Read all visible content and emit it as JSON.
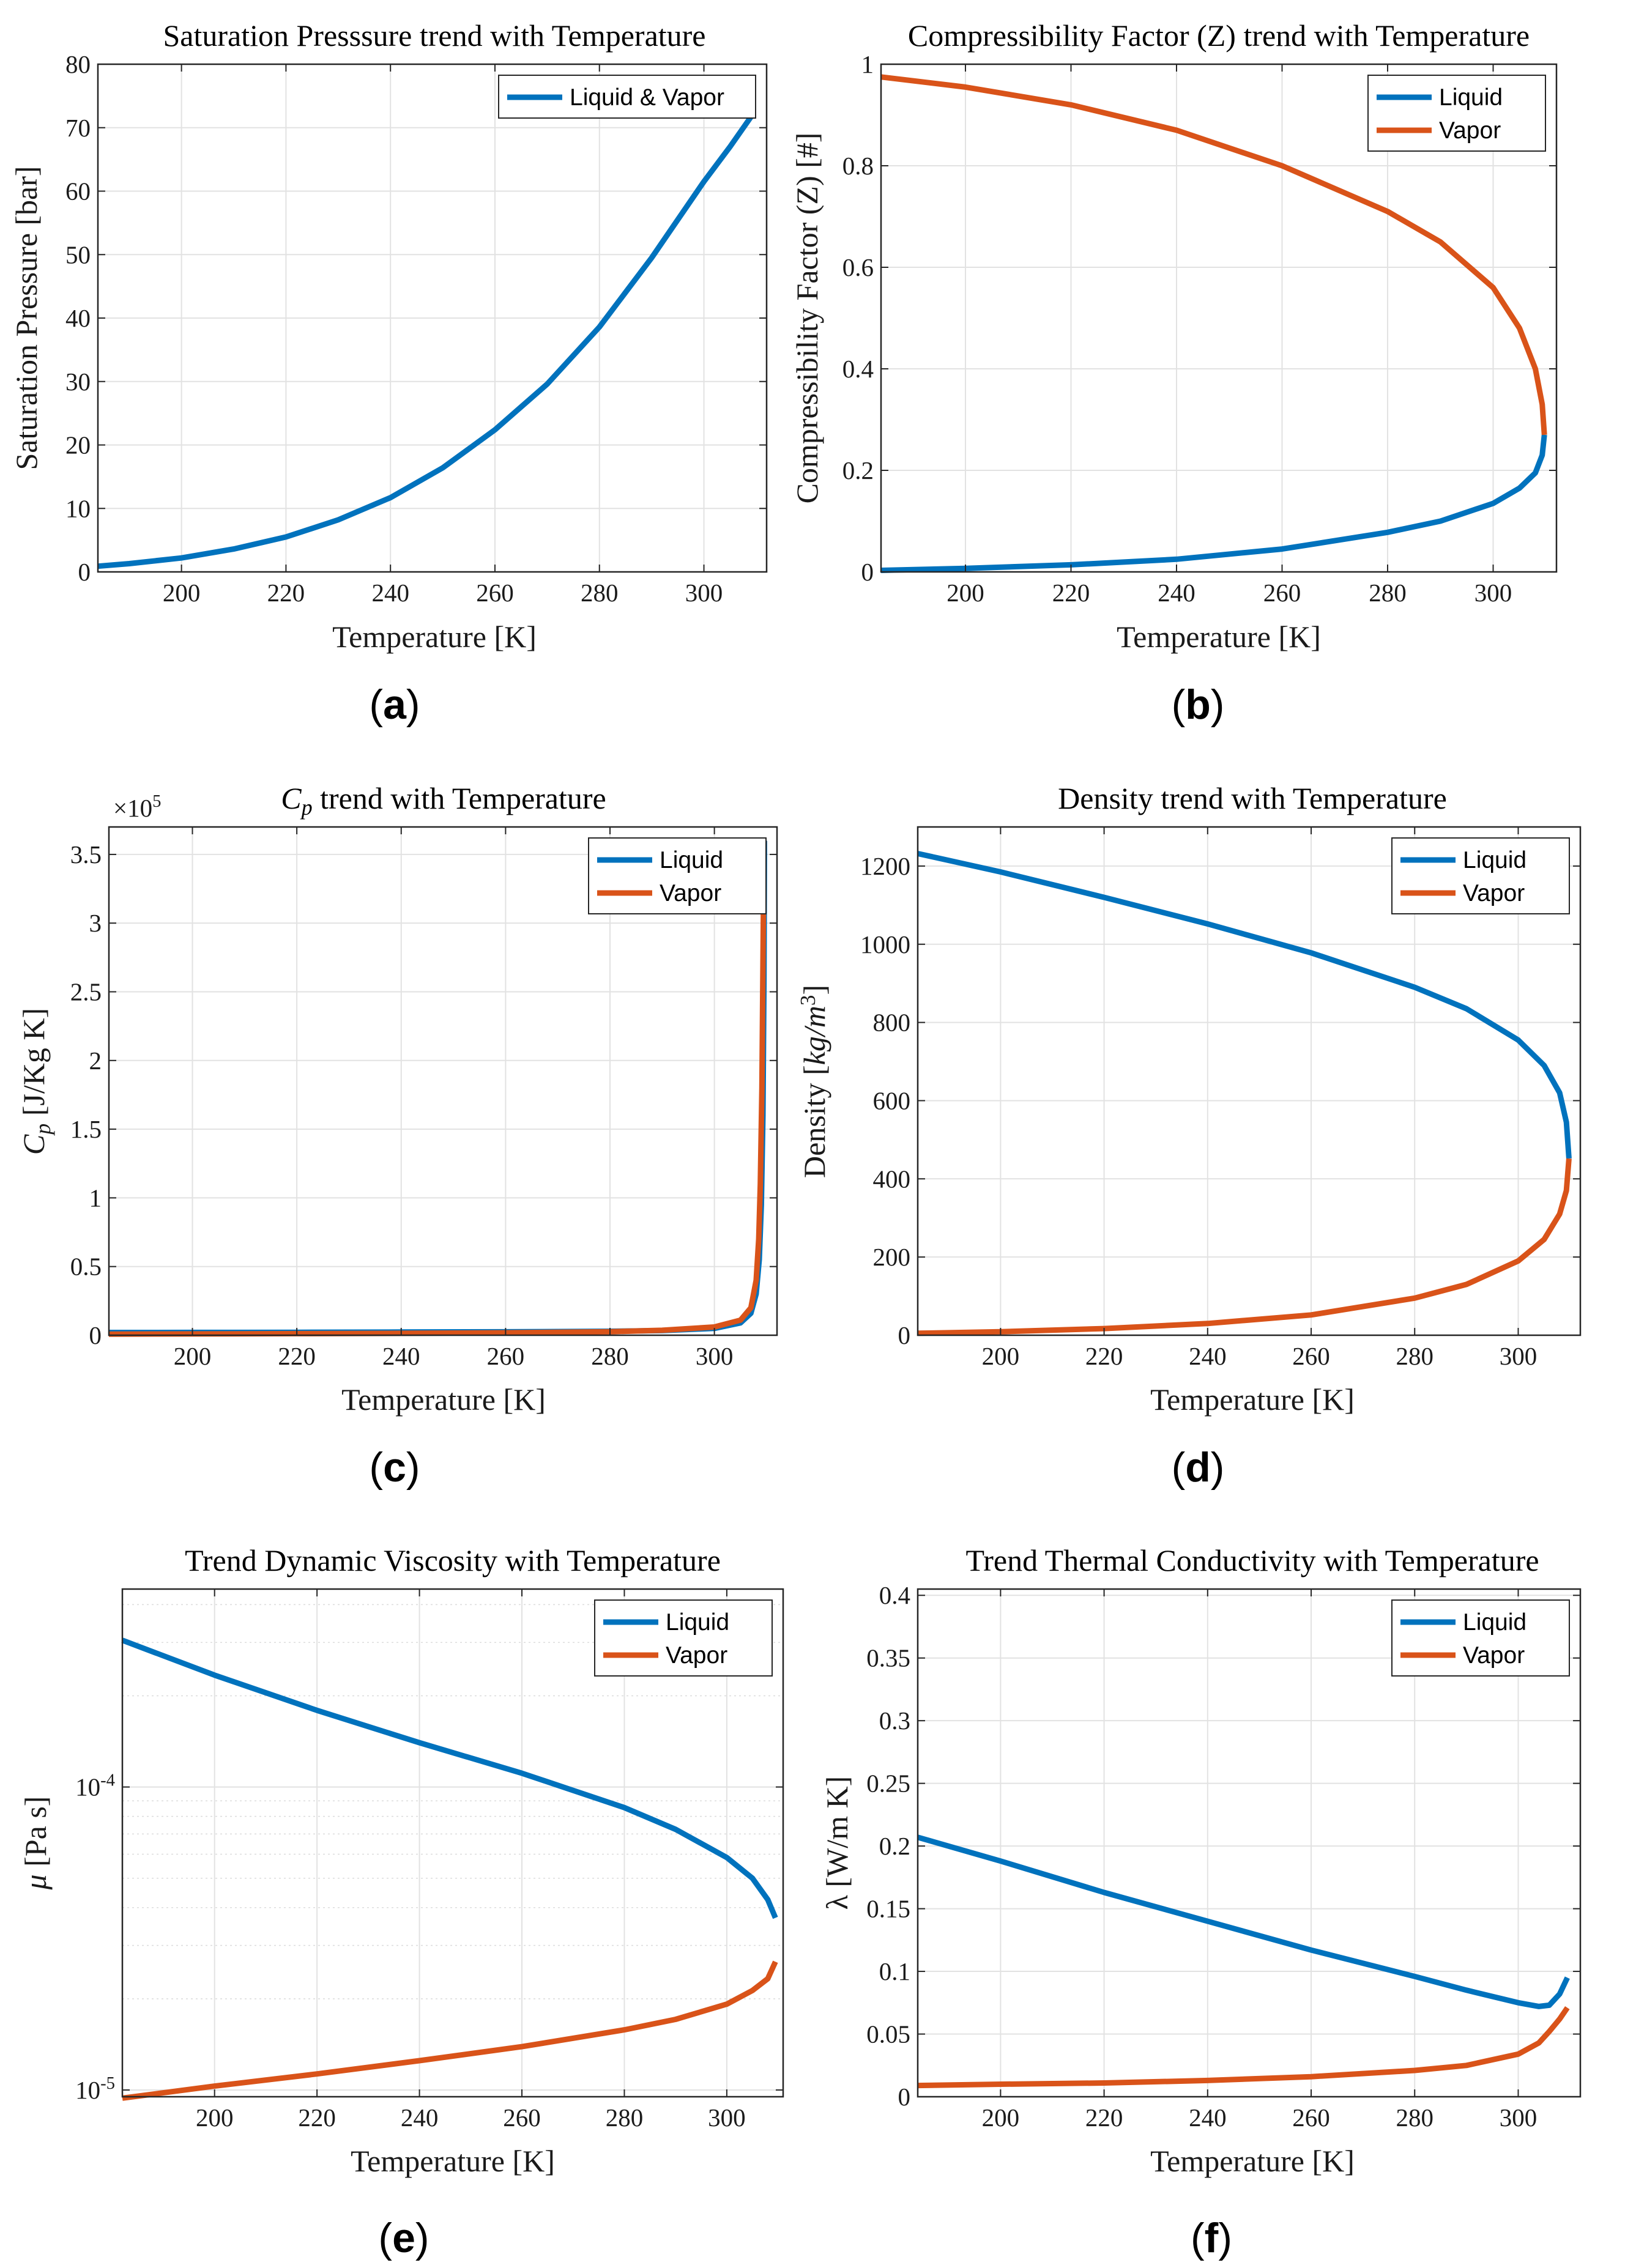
{
  "colors": {
    "liquid": "#0072BD",
    "vapor": "#D95319"
  },
  "chart_data": [
    {
      "type": "line",
      "panel": "a",
      "caption": "(a)",
      "title": "Saturation Presssure trend with Temperature",
      "xlabel": "Temperature [K]",
      "ylabel": "Saturation Pressure [bar]",
      "xlim": [
        184,
        312
      ],
      "ylim": [
        0,
        80
      ],
      "yscale": "linear",
      "grid": true,
      "legend_position": "top-right",
      "xticks": [
        200,
        220,
        240,
        260,
        280,
        300
      ],
      "yticks": [
        0,
        10,
        20,
        30,
        40,
        50,
        60,
        70,
        80
      ],
      "yticklabels": [
        "0",
        "10",
        "20",
        "30",
        "40",
        "50",
        "60",
        "70",
        "80"
      ],
      "series": [
        {
          "name": "Liquid & Vapor",
          "color": "#0072BD",
          "x": [
            184,
            190,
            200,
            210,
            220,
            230,
            240,
            250,
            260,
            270,
            280,
            290,
            300,
            305,
            309.5
          ],
          "y": [
            0.9,
            1.3,
            2.2,
            3.6,
            5.5,
            8.2,
            11.7,
            16.4,
            22.4,
            29.6,
            38.6,
            49.5,
            61.5,
            67.0,
            72.3
          ]
        }
      ]
    },
    {
      "type": "line",
      "panel": "b",
      "caption": "(b)",
      "title": "Compressibility Factor (Z) trend with Temperature",
      "xlabel": "Temperature [K]",
      "ylabel": "Compressibility Factor (Z) [#]",
      "xlim": [
        184,
        312
      ],
      "ylim": [
        0,
        1
      ],
      "yscale": "linear",
      "grid": true,
      "legend_position": "top-right",
      "xticks": [
        200,
        220,
        240,
        260,
        280,
        300
      ],
      "yticks": [
        0,
        0.2,
        0.4,
        0.6,
        0.8,
        1
      ],
      "yticklabels": [
        "0",
        "0.2",
        "0.4",
        "0.6",
        "0.8",
        "1"
      ],
      "series": [
        {
          "name": "Liquid",
          "color": "#0072BD",
          "x": [
            184,
            200,
            220,
            240,
            260,
            280,
            290,
            300,
            305,
            308,
            309.3,
            309.7
          ],
          "y": [
            0.003,
            0.007,
            0.014,
            0.025,
            0.045,
            0.078,
            0.1,
            0.135,
            0.165,
            0.195,
            0.23,
            0.27
          ]
        },
        {
          "name": "Vapor",
          "color": "#D95319",
          "x": [
            184,
            200,
            220,
            240,
            260,
            280,
            290,
            300,
            305,
            308,
            309.3,
            309.7
          ],
          "y": [
            0.975,
            0.955,
            0.92,
            0.87,
            0.8,
            0.71,
            0.65,
            0.56,
            0.48,
            0.4,
            0.33,
            0.27
          ]
        }
      ]
    },
    {
      "type": "line",
      "panel": "c",
      "caption": "(c)",
      "title": "Cp trend with Temperature",
      "xlabel": "Temperature [K]",
      "ylabel": "Cp [J/Kg K]",
      "exponent_label": "×10^5",
      "xlim": [
        184,
        312
      ],
      "ylim": [
        0,
        370000
      ],
      "yscale": "linear",
      "grid": true,
      "legend_position": "top-right",
      "xticks": [
        200,
        220,
        240,
        260,
        280,
        300
      ],
      "yticks": [
        0,
        50000,
        100000,
        150000,
        200000,
        250000,
        300000,
        350000
      ],
      "yticklabels": [
        "0",
        "0.5",
        "1",
        "1.5",
        "2",
        "2.5",
        "3",
        "3.5"
      ],
      "series": [
        {
          "name": "Liquid",
          "color": "#0072BD",
          "x": [
            184,
            200,
            220,
            240,
            260,
            280,
            290,
            300,
            305,
            307,
            308,
            308.6,
            309,
            309.3,
            309.5,
            309.6
          ],
          "y": [
            2000,
            2050,
            2150,
            2300,
            2500,
            2900,
            3400,
            5000,
            9000,
            16000,
            30000,
            55000,
            95000,
            160000,
            260000,
            360000
          ]
        },
        {
          "name": "Vapor",
          "color": "#D95319",
          "x": [
            184,
            200,
            220,
            240,
            260,
            280,
            290,
            300,
            305,
            307,
            308,
            308.5,
            308.8,
            309.1,
            309.3,
            309.5
          ],
          "y": [
            800,
            950,
            1150,
            1400,
            1800,
            2600,
            3600,
            6000,
            11000,
            20000,
            40000,
            70000,
            110000,
            180000,
            270000,
            360000
          ]
        }
      ]
    },
    {
      "type": "line",
      "panel": "d",
      "caption": "(d)",
      "title": "Density trend with Temperature",
      "xlabel": "Temperature [K]",
      "ylabel": "Density [kg/m3]",
      "xlim": [
        184,
        312
      ],
      "ylim": [
        0,
        1300
      ],
      "yscale": "linear",
      "grid": true,
      "legend_position": "top-right",
      "xticks": [
        200,
        220,
        240,
        260,
        280,
        300
      ],
      "yticks": [
        0,
        200,
        400,
        600,
        800,
        1000,
        1200
      ],
      "yticklabels": [
        "0",
        "200",
        "400",
        "600",
        "800",
        "1000",
        "1200"
      ],
      "series": [
        {
          "name": "Liquid",
          "color": "#0072BD",
          "x": [
            184,
            200,
            220,
            240,
            260,
            280,
            290,
            300,
            305,
            308,
            309.3,
            309.8
          ],
          "y": [
            1232,
            1185,
            1120,
            1052,
            978,
            890,
            835,
            755,
            690,
            620,
            545,
            452
          ]
        },
        {
          "name": "Vapor",
          "color": "#D95319",
          "x": [
            184,
            200,
            220,
            240,
            260,
            280,
            290,
            300,
            305,
            308,
            309.3,
            309.8
          ],
          "y": [
            5,
            9,
            17,
            30,
            52,
            95,
            130,
            190,
            245,
            310,
            370,
            452
          ]
        }
      ]
    },
    {
      "type": "line",
      "panel": "e",
      "caption": "(e)",
      "title": "Trend Dynamic Viscosity with Temperature",
      "xlabel": "Temperature [K]",
      "ylabel": "μ [Pa s]",
      "xlim": [
        182,
        311
      ],
      "ylim": [
        9.5e-06,
        0.00045
      ],
      "yscale": "log",
      "grid": true,
      "legend_position": "top-right",
      "xticks": [
        200,
        220,
        240,
        260,
        280,
        300
      ],
      "yticks": [
        1e-05,
        0.0001
      ],
      "yticklabels": [
        "10^-5",
        "10^-4"
      ],
      "series": [
        {
          "name": "Liquid",
          "color": "#0072BD",
          "x": [
            182,
            200,
            220,
            240,
            260,
            280,
            290,
            300,
            305,
            308,
            309.5
          ],
          "y": [
            0.000305,
            0.000234,
            0.000179,
            0.00014,
            0.000111,
            8.55e-05,
            7.25e-05,
            5.85e-05,
            5e-05,
            4.25e-05,
            3.7e-05
          ]
        },
        {
          "name": "Vapor",
          "color": "#D95319",
          "x": [
            182,
            200,
            220,
            240,
            260,
            280,
            290,
            300,
            305,
            308,
            309.5
          ],
          "y": [
            9.4e-06,
            1.03e-05,
            1.13e-05,
            1.25e-05,
            1.39e-05,
            1.58e-05,
            1.71e-05,
            1.92e-05,
            2.13e-05,
            2.33e-05,
            2.65e-05
          ]
        }
      ]
    },
    {
      "type": "line",
      "panel": "f",
      "caption": "(f)",
      "title": "Trend Thermal Conductivity with Temperature",
      "xlabel": "Temperature [K]",
      "ylabel": "λ [W/m K]",
      "xlim": [
        184,
        312
      ],
      "ylim": [
        0,
        0.405
      ],
      "yscale": "linear",
      "grid": true,
      "legend_position": "top-right",
      "xticks": [
        200,
        220,
        240,
        260,
        280,
        300
      ],
      "yticks": [
        0,
        0.05,
        0.1,
        0.15,
        0.2,
        0.25,
        0.3,
        0.35,
        0.4
      ],
      "yticklabels": [
        "0",
        "0.05",
        "0.1",
        "0.15",
        "0.2",
        "0.25",
        "0.3",
        "0.35",
        "0.4"
      ],
      "series": [
        {
          "name": "Liquid",
          "color": "#0072BD",
          "x": [
            184,
            200,
            220,
            240,
            260,
            280,
            290,
            300,
            304,
            306,
            308,
            309.5
          ],
          "y": [
            0.207,
            0.188,
            0.163,
            0.14,
            0.117,
            0.096,
            0.085,
            0.075,
            0.072,
            0.073,
            0.082,
            0.095
          ]
        },
        {
          "name": "Vapor",
          "color": "#D95319",
          "x": [
            184,
            200,
            220,
            240,
            260,
            280,
            290,
            300,
            304,
            306,
            308,
            309.5
          ],
          "y": [
            0.009,
            0.01,
            0.011,
            0.013,
            0.016,
            0.021,
            0.025,
            0.034,
            0.043,
            0.052,
            0.062,
            0.071
          ]
        }
      ]
    }
  ]
}
